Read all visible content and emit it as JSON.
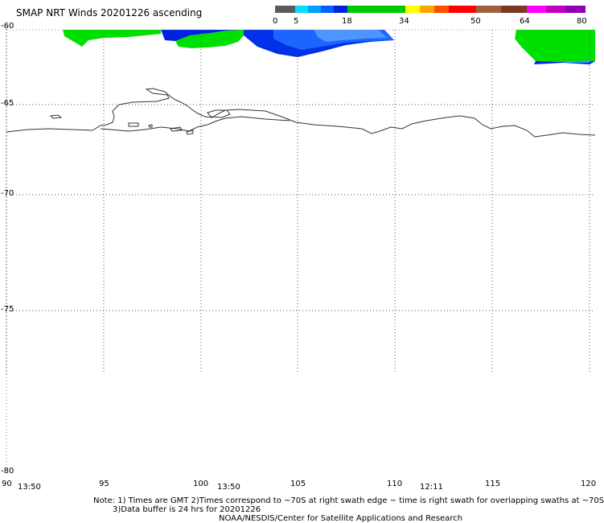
{
  "header": {
    "title": "SMAP NRT Winds 20201226 ascending"
  },
  "colorbar": {
    "ticks": [
      "0",
      "5",
      "18",
      "34",
      "50",
      "64",
      "80"
    ],
    "colors": {
      "0-5": "#5a5a5a",
      "5-18": [
        "#00dfff",
        "#00a0ff",
        "#0060ff",
        "#0020e0"
      ],
      "18-34": "#00c800",
      "34-50": [
        "#ffff00",
        "#ffa500",
        "#ff5000",
        "#ff0000"
      ],
      "50-64": [
        "#a06040",
        "#7a3a20"
      ],
      "64-80": [
        "#ff00ff",
        "#c000c0",
        "#9000b0"
      ]
    }
  },
  "map": {
    "lat_labels": [
      "-60",
      "-65",
      "-70",
      "-75",
      "-80"
    ],
    "lon_labels": [
      "90",
      "95",
      "100",
      "105",
      "110",
      "115",
      "120"
    ],
    "time_labels": [
      "13:50",
      "13:50",
      "12:11"
    ],
    "colors": {
      "coastline": "#333333",
      "grid": "#555555",
      "wind_18_34": "#00e000",
      "wind_5_18": "#0030e0"
    }
  },
  "footer": {
    "note_line1": "Note: 1) Times are GMT 2)Times correspond to ~70S at right swath edge ~ time is right swath for overlapping swaths at ~70S",
    "note_line2": "3)Data buffer is 24 hrs for 20201226",
    "credit": "NOAA/NESDIS/Center for Satellite Applications and Research"
  }
}
